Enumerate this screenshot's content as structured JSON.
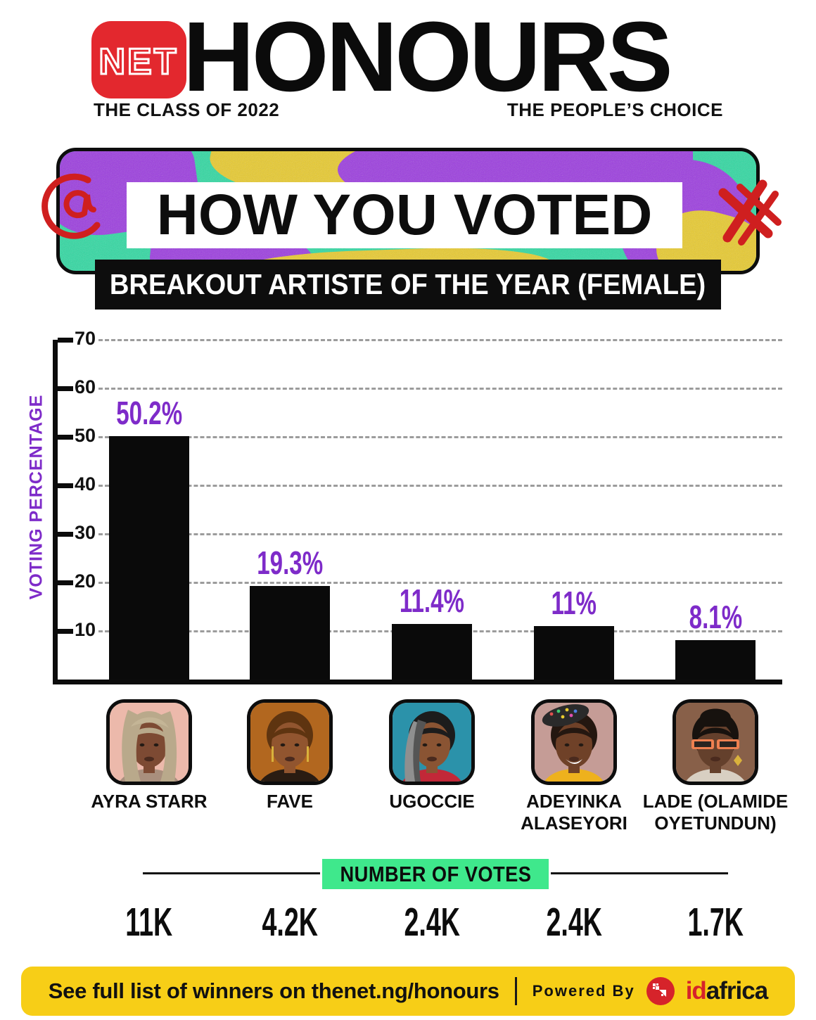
{
  "header": {
    "logo_text": "NET",
    "title": "HONOURS",
    "subtitle_left": "THE CLASS OF 2022",
    "subtitle_right": "THE PEOPLE’S CHOICE"
  },
  "banner": {
    "title": "HOW YOU VOTED",
    "category": "BREAKOUT ARTISTE OF THE YEAR (FEMALE)"
  },
  "chart_data": {
    "type": "bar",
    "title": "HOW YOU VOTED — BREAKOUT ARTISTE OF THE YEAR (FEMALE)",
    "ylabel": "VOTING PERCENTAGE",
    "xlabel": "",
    "ylim": [
      0,
      70
    ],
    "yticks": [
      10,
      20,
      30,
      40,
      50,
      60,
      70
    ],
    "grid": "horizontal dashed",
    "legend": "none",
    "bar_color": "#0a0a0a",
    "value_label_color": "#7e2bc9",
    "categories": [
      "AYRA STARR",
      "FAVE",
      "UGOCCIE",
      "ADEYINKA ALASEYORI",
      "LADE (OLAMIDE OYETUNDUN)"
    ],
    "values": [
      50.2,
      19.3,
      11.4,
      11,
      8.1
    ],
    "value_labels": [
      "50.2%",
      "19.3%",
      "11.4%",
      "11%",
      "8.1%"
    ],
    "votes": [
      "11K",
      "4.2K",
      "2.4K",
      "2.4K",
      "1.7K"
    ]
  },
  "votes_section": {
    "title": "NUMBER OF VOTES"
  },
  "footer": {
    "text": "See full list of winners on thenet.ng/honours",
    "separator": "|",
    "powered_by": "Powered By",
    "brand_id": "id",
    "brand_africa": "africa"
  },
  "colors": {
    "accent_purple": "#7e2bc9",
    "brand_red": "#e3282e",
    "votes_green": "#3fe88c",
    "footer_yellow": "#f7ce17",
    "bar_black": "#0a0a0a",
    "banner_teal": "#30d9a2",
    "banner_purple": "#9c3ce0",
    "banner_yellow": "#e9cb2e",
    "scribble_red": "#cf1f1f"
  }
}
